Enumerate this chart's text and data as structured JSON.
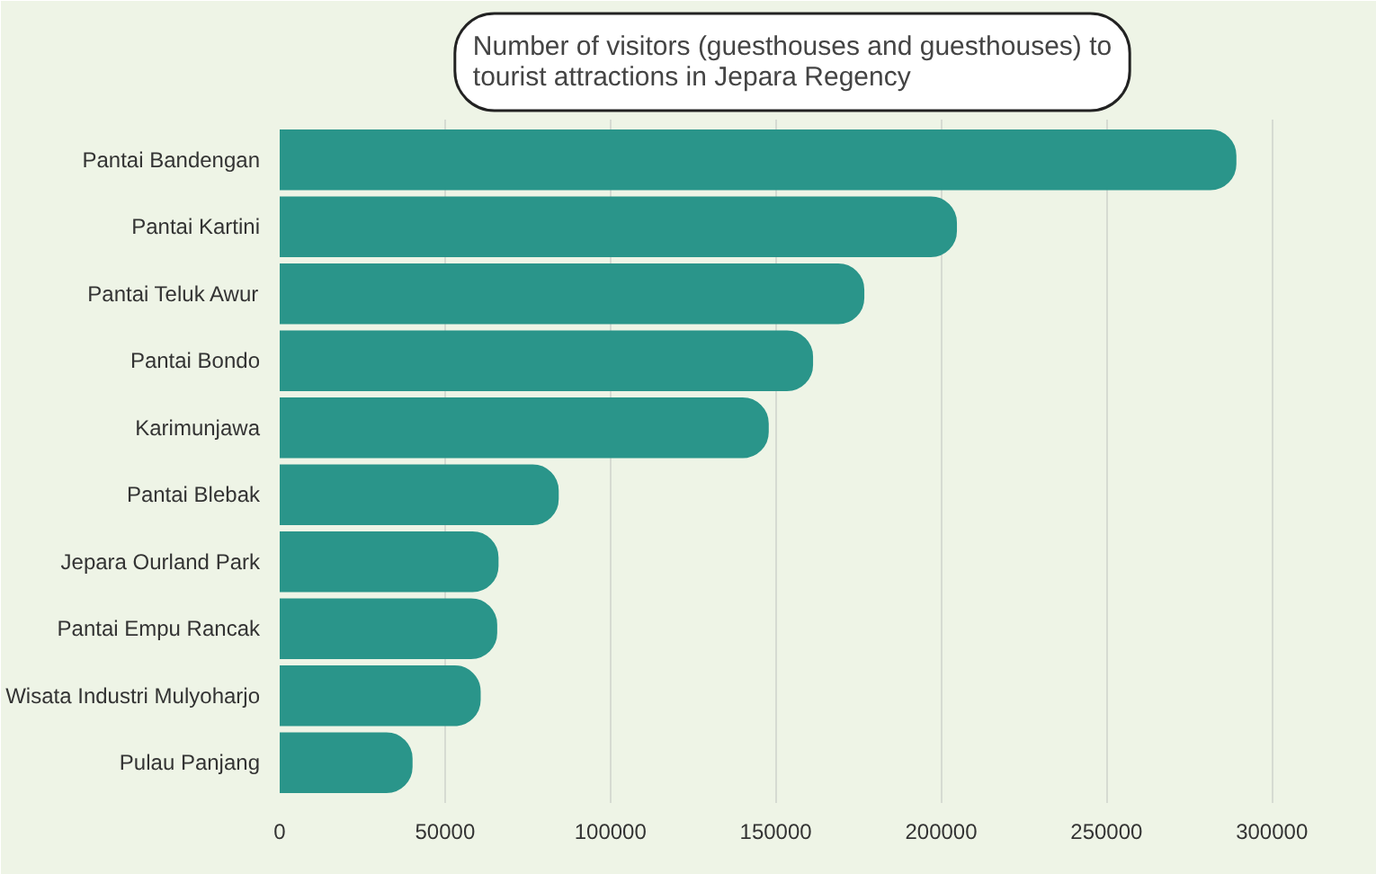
{
  "chart_data": {
    "type": "bar",
    "orientation": "horizontal",
    "title": "Number of visitors (guesthouses and guesthouses) to\ntourist attractions in Jepara Regency",
    "categories": [
      "Pantai Bandengan",
      "Pantai Kartini",
      "Pantai Teluk Awur",
      "Pantai Bondo",
      "Karimunjawa",
      "Pantai Blebak",
      "Jepara Ourland Park",
      "Pantai Empu Rancak",
      "Wisata Industri Mulyoharjo",
      "Pulau Panjang"
    ],
    "values": [
      289000,
      204500,
      176500,
      161000,
      147600,
      84100,
      65900,
      65500,
      60500,
      39900
    ],
    "color": "#2a958a",
    "xlim": [
      0,
      310000
    ],
    "xticks": [
      0,
      50000,
      100000,
      150000,
      200000,
      250000,
      300000
    ],
    "grid": "x"
  }
}
